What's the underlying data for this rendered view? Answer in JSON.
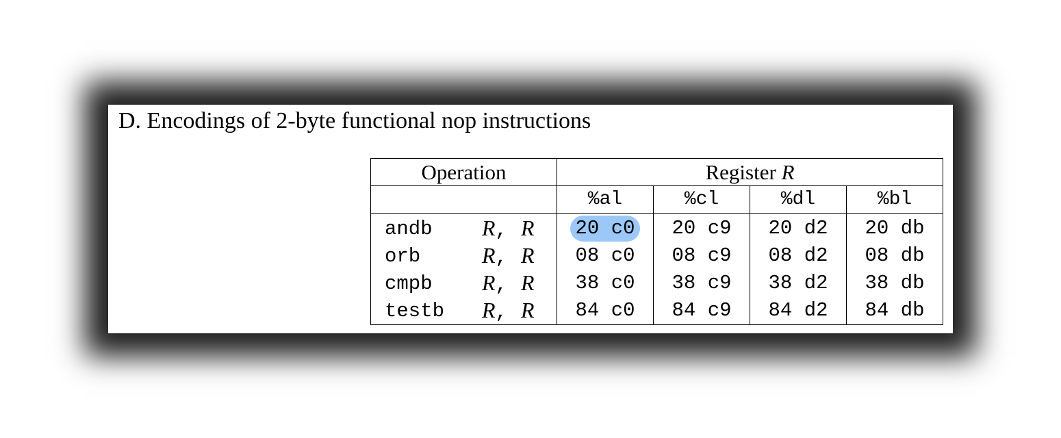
{
  "heading": "D. Encodings of 2-byte functional nop instructions",
  "table": {
    "operation_header": "Operation",
    "register_header_prefix": "Register ",
    "register_header_var": "R",
    "registers": [
      "%al",
      "%cl",
      "%dl",
      "%bl"
    ],
    "rows": [
      {
        "op": "andb",
        "arg1": "R",
        "sep": ",",
        "arg2": "R",
        "codes": [
          "20 c0",
          "20 c9",
          "20 d2",
          "20 db"
        ]
      },
      {
        "op": "orb",
        "arg1": "R",
        "sep": ",",
        "arg2": "R",
        "codes": [
          "08 c0",
          "08 c9",
          "08 d2",
          "08 db"
        ]
      },
      {
        "op": "cmpb",
        "arg1": "R",
        "sep": ",",
        "arg2": "R",
        "codes": [
          "38 c0",
          "38 c9",
          "38 d2",
          "38 db"
        ]
      },
      {
        "op": "testb",
        "arg1": "R",
        "sep": ",",
        "arg2": "R",
        "codes": [
          "84 c0",
          "84 c9",
          "84 d2",
          "84 db"
        ]
      }
    ],
    "highlighted_cell": "20 c0",
    "highlight_color": "#9cc8f8"
  }
}
